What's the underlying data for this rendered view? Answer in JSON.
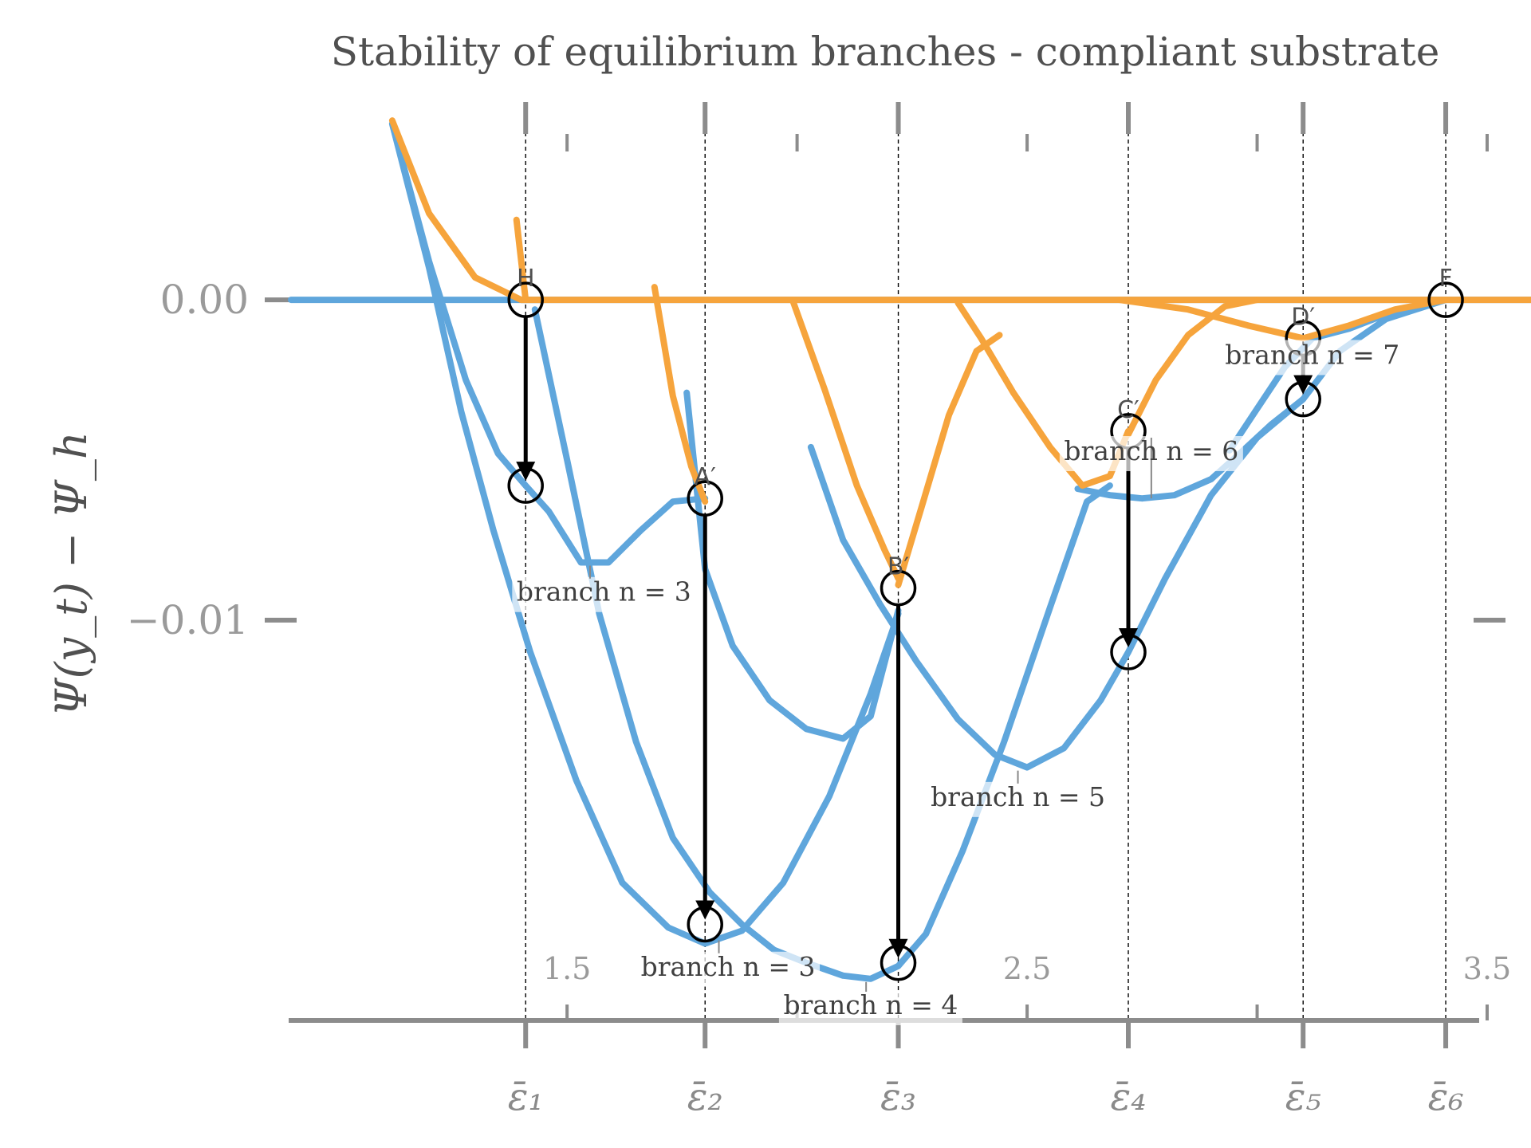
{
  "chart_data": {
    "type": "line",
    "title": "Stability of equilibrium branches - compliant substrate",
    "ylabel": "Ψ(y_t) − Ψ_h",
    "xlim": [
      0.9,
      3.5
    ],
    "ylim": [
      -0.0225,
      0.0065
    ],
    "y_ticks": [
      {
        "value": 0.0,
        "label": "0.00"
      },
      {
        "value": -0.01,
        "label": "−0.01"
      }
    ],
    "x_minor_ticks": [
      {
        "value": 1.5,
        "label": "1.5"
      },
      {
        "value": 2.0,
        "label": ""
      },
      {
        "value": 2.5,
        "label": "2.5"
      },
      {
        "value": 3.0,
        "label": ""
      },
      {
        "value": 3.5,
        "label": "3.5"
      }
    ],
    "critical_strains": [
      {
        "value": 1.41,
        "label": "ε̄₁"
      },
      {
        "value": 1.8,
        "label": "ε̄₂"
      },
      {
        "value": 2.22,
        "label": "ε̄₃"
      },
      {
        "value": 2.72,
        "label": "ε̄₄"
      },
      {
        "value": 3.1,
        "label": "ε̄₅"
      },
      {
        "value": 3.41,
        "label": "ε̄₆"
      }
    ],
    "colors": {
      "stable": "#5fa6dc",
      "unstable": "#f6a43c",
      "arrow": "#000000",
      "axis": "#8c8c8c"
    },
    "series": [
      {
        "role": "stable",
        "points": [
          [
            0.9,
            0.0
          ],
          [
            1.45,
            0.0
          ]
        ]
      },
      {
        "role": "stable",
        "points": [
          [
            1.4,
            0.0
          ],
          [
            3.85,
            0.0
          ]
        ]
      },
      {
        "role": "stable",
        "points": [
          [
            1.12,
            0.0055
          ],
          [
            1.2,
            0.0012
          ],
          [
            1.28,
            -0.0025
          ],
          [
            1.35,
            -0.0048
          ],
          [
            1.41,
            -0.0058
          ],
          [
            1.46,
            -0.0066
          ],
          [
            1.53,
            -0.0082
          ],
          [
            1.59,
            -0.0082
          ],
          [
            1.66,
            -0.0072
          ],
          [
            1.73,
            -0.0063
          ],
          [
            1.8,
            -0.0062
          ]
        ]
      },
      {
        "role": "stable",
        "points": [
          [
            1.12,
            0.0055
          ],
          [
            1.2,
            0.001
          ],
          [
            1.27,
            -0.0035
          ],
          [
            1.34,
            -0.0072
          ],
          [
            1.42,
            -0.011
          ],
          [
            1.52,
            -0.015
          ],
          [
            1.62,
            -0.0182
          ],
          [
            1.72,
            -0.0196
          ],
          [
            1.8,
            -0.0201
          ],
          [
            1.88,
            -0.0197
          ],
          [
            1.97,
            -0.0182
          ],
          [
            2.07,
            -0.0155
          ],
          [
            2.16,
            -0.0123
          ],
          [
            2.22,
            -0.0098
          ]
        ]
      },
      {
        "role": "stable",
        "points": [
          [
            1.43,
            -0.0003
          ],
          [
            1.5,
            -0.005
          ],
          [
            1.57,
            -0.0098
          ],
          [
            1.65,
            -0.0138
          ],
          [
            1.73,
            -0.0168
          ],
          [
            1.81,
            -0.0185
          ],
          [
            1.88,
            -0.0195
          ],
          [
            1.95,
            -0.0203
          ],
          [
            2.02,
            -0.0207
          ],
          [
            2.1,
            -0.0211
          ],
          [
            2.16,
            -0.0212
          ],
          [
            2.22,
            -0.0208
          ],
          [
            2.28,
            -0.0198
          ],
          [
            2.36,
            -0.0172
          ],
          [
            2.45,
            -0.0138
          ],
          [
            2.55,
            -0.0096
          ],
          [
            2.63,
            -0.0063
          ],
          [
            2.68,
            -0.0058
          ]
        ]
      },
      {
        "role": "stable",
        "points": [
          [
            1.76,
            -0.0029
          ],
          [
            1.8,
            -0.0084
          ],
          [
            1.86,
            -0.0108
          ],
          [
            1.94,
            -0.0125
          ],
          [
            2.02,
            -0.0134
          ],
          [
            2.1,
            -0.0137
          ],
          [
            2.16,
            -0.013
          ],
          [
            2.22,
            -0.0097
          ]
        ]
      },
      {
        "role": "stable",
        "points": [
          [
            2.03,
            -0.0046
          ],
          [
            2.1,
            -0.0075
          ],
          [
            2.18,
            -0.0095
          ],
          [
            2.26,
            -0.0113
          ],
          [
            2.35,
            -0.0131
          ],
          [
            2.43,
            -0.0142
          ],
          [
            2.5,
            -0.0146
          ],
          [
            2.58,
            -0.014
          ],
          [
            2.66,
            -0.0125
          ],
          [
            2.72,
            -0.011
          ],
          [
            2.8,
            -0.0087
          ],
          [
            2.9,
            -0.0061
          ],
          [
            3.0,
            -0.0043
          ],
          [
            3.1,
            -0.0031
          ]
        ]
      },
      {
        "role": "stable",
        "points": [
          [
            2.61,
            -0.0059
          ],
          [
            2.68,
            -0.0061
          ],
          [
            2.75,
            -0.0062
          ],
          [
            2.82,
            -0.0061
          ],
          [
            2.9,
            -0.0056
          ],
          [
            2.97,
            -0.0047
          ],
          [
            3.03,
            -0.0039
          ],
          [
            3.1,
            -0.0031
          ],
          [
            3.18,
            -0.0016
          ],
          [
            3.28,
            -0.0006
          ],
          [
            3.41,
            0.0
          ]
        ]
      },
      {
        "role": "stable",
        "points": [
          [
            2.94,
            -0.0047
          ],
          [
            3.0,
            -0.0034
          ],
          [
            3.06,
            -0.0021
          ],
          [
            3.12,
            -0.0012
          ],
          [
            3.2,
            -0.0009
          ],
          [
            3.29,
            -0.0004
          ],
          [
            3.41,
            0.0
          ]
        ]
      },
      {
        "role": "unstable",
        "points": [
          [
            1.12,
            0.0056
          ],
          [
            1.2,
            0.0027
          ],
          [
            1.3,
            0.0007
          ],
          [
            1.4,
            0.0
          ],
          [
            1.5,
            0.0
          ],
          [
            3.85,
            0.0
          ]
        ]
      },
      {
        "role": "unstable",
        "points": [
          [
            1.39,
            0.0025
          ],
          [
            1.41,
            0.0
          ]
        ]
      },
      {
        "role": "unstable",
        "points": [
          [
            1.69,
            0.0004
          ],
          [
            1.73,
            -0.003
          ],
          [
            1.77,
            -0.0052
          ],
          [
            1.8,
            -0.0063
          ]
        ]
      },
      {
        "role": "unstable",
        "points": [
          [
            1.99,
            0.0
          ],
          [
            2.06,
            -0.0028
          ],
          [
            2.13,
            -0.0058
          ],
          [
            2.19,
            -0.0078
          ],
          [
            2.22,
            -0.0087
          ]
        ]
      },
      {
        "role": "unstable",
        "points": [
          [
            2.22,
            -0.0089
          ],
          [
            2.27,
            -0.0065
          ],
          [
            2.33,
            -0.0036
          ],
          [
            2.39,
            -0.0016
          ],
          [
            2.44,
            -0.0011
          ]
        ]
      },
      {
        "role": "unstable",
        "points": [
          [
            2.35,
            -0.0001
          ],
          [
            2.4,
            -0.0012
          ],
          [
            2.47,
            -0.0029
          ],
          [
            2.55,
            -0.0046
          ],
          [
            2.62,
            -0.0058
          ],
          [
            2.68,
            -0.0055
          ],
          [
            2.72,
            -0.0041
          ]
        ]
      },
      {
        "role": "unstable",
        "points": [
          [
            2.72,
            -0.0042
          ],
          [
            2.78,
            -0.0025
          ],
          [
            2.85,
            -0.0011
          ],
          [
            2.93,
            -0.0002
          ],
          [
            3.0,
            0.0
          ]
        ]
      },
      {
        "role": "unstable",
        "points": [
          [
            2.7,
            0.0
          ],
          [
            2.85,
            -0.0003
          ],
          [
            2.98,
            -0.0008
          ],
          [
            3.1,
            -0.0012
          ],
          [
            3.2,
            -0.0008
          ],
          [
            3.3,
            -0.0003
          ],
          [
            3.41,
            0.0
          ]
        ]
      }
    ],
    "markers": [
      {
        "x": 1.41,
        "y": 0.0,
        "label": "H"
      },
      {
        "x": 1.41,
        "y": -0.0058,
        "label": ""
      },
      {
        "x": 1.8,
        "y": -0.0062,
        "label": "A′"
      },
      {
        "x": 1.8,
        "y": -0.0195,
        "label": ""
      },
      {
        "x": 2.22,
        "y": -0.009,
        "label": "B′"
      },
      {
        "x": 2.22,
        "y": -0.0207,
        "label": ""
      },
      {
        "x": 2.72,
        "y": -0.0041,
        "label": "C′"
      },
      {
        "x": 2.72,
        "y": -0.011,
        "label": ""
      },
      {
        "x": 3.1,
        "y": -0.0012,
        "label": "D′"
      },
      {
        "x": 3.1,
        "y": -0.0031,
        "label": ""
      },
      {
        "x": 3.41,
        "y": 0.0,
        "label": "F"
      }
    ],
    "jumps": [
      {
        "x": 1.41,
        "from": 0.0,
        "to": -0.0058
      },
      {
        "x": 1.8,
        "from": -0.0062,
        "to": -0.0195
      },
      {
        "x": 2.22,
        "from": -0.009,
        "to": -0.0207
      },
      {
        "x": 2.72,
        "from": -0.0041,
        "to": -0.011
      },
      {
        "x": 3.1,
        "from": -0.0012,
        "to": -0.0031
      }
    ],
    "annotations": [
      {
        "text": "branch n = 3",
        "x": 1.58,
        "y": -0.0094,
        "ax": 1.55,
        "ay": -0.0082
      },
      {
        "text": "branch n = 3",
        "x": 1.85,
        "y": -0.0211,
        "ax": 1.83,
        "ay": -0.0199
      },
      {
        "text": "branch n = 4",
        "x": 2.16,
        "y": -0.0223,
        "ax": 2.15,
        "ay": -0.0212
      },
      {
        "text": "branch n = 5",
        "x": 2.48,
        "y": -0.0158,
        "ax": 2.48,
        "ay": -0.0146
      },
      {
        "text": "branch n = 6",
        "x": 2.77,
        "y": -0.005,
        "ax": 2.77,
        "ay": -0.0061
      },
      {
        "text": "branch n = 7",
        "x": 3.12,
        "y": -0.002,
        "ax": 3.1,
        "ay": -0.0013
      }
    ]
  }
}
